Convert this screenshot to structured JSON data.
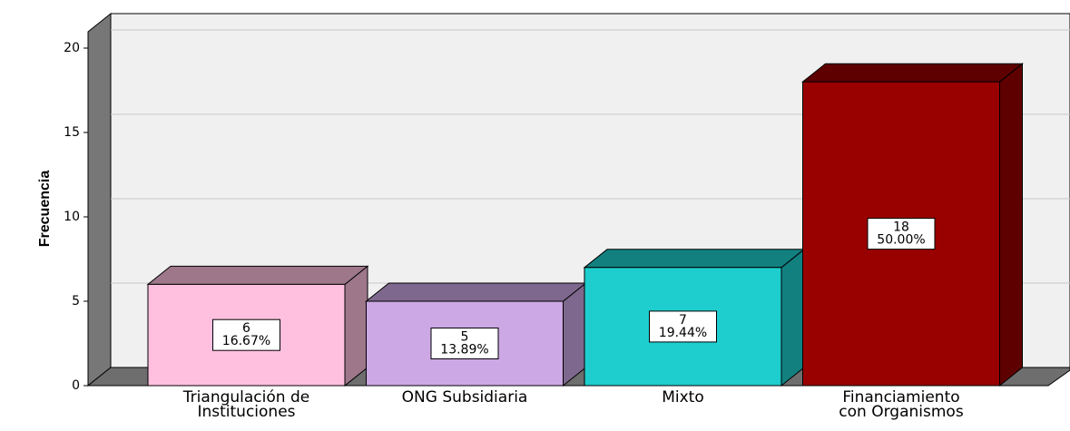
{
  "chart_data": {
    "type": "bar3d",
    "y_label": "Frecuencia",
    "categories": [
      "Triangulación de Instituciones",
      "ONG Subsidiaria",
      "Mixto",
      "Financiamiento con Organismos"
    ],
    "values": [
      6,
      5,
      7,
      18
    ],
    "percentages": [
      16.67,
      13.89,
      19.44,
      50.0
    ],
    "percentage_labels": [
      "16.67%",
      "13.89%",
      "19.44%",
      "50.00%"
    ],
    "colors": [
      "#ffc0e0",
      "#cca8e4",
      "#1ecece",
      "#990000"
    ],
    "ylim": [
      0,
      20
    ],
    "yticks": [
      0,
      5,
      10,
      15,
      20
    ],
    "grid": true
  }
}
